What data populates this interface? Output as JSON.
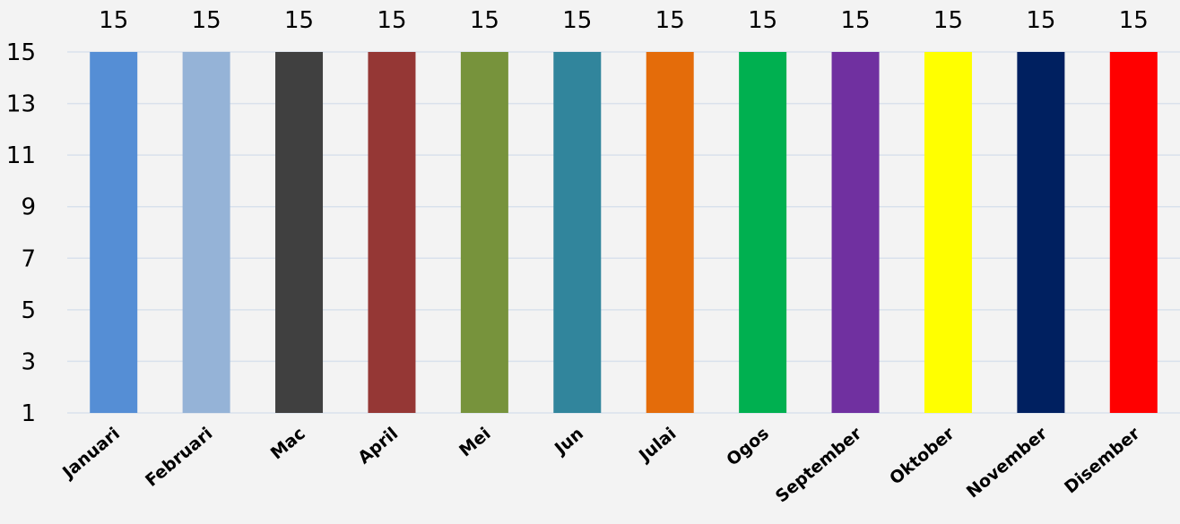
{
  "chart_data": {
    "type": "bar",
    "title": "",
    "xlabel": "",
    "ylabel": "",
    "categories": [
      "Januari",
      "Februari",
      "Mac",
      "April",
      "Mei",
      "Jun",
      "Julai",
      "Ogos",
      "September",
      "Oktober",
      "November",
      "Disember"
    ],
    "values": [
      15,
      15,
      15,
      15,
      15,
      15,
      15,
      15,
      15,
      15,
      15,
      15
    ],
    "colors": [
      "#558ed5",
      "#95b3d7",
      "#404040",
      "#953735",
      "#77933c",
      "#31859c",
      "#e46c0a",
      "#00b050",
      "#7030a0",
      "#ffff00",
      "#002060",
      "#ff0000"
    ],
    "ylim": [
      1,
      15
    ],
    "yticks": [
      1,
      3,
      5,
      7,
      9,
      11,
      13,
      15
    ],
    "grid": true,
    "legend": "none",
    "data_labels": true
  }
}
